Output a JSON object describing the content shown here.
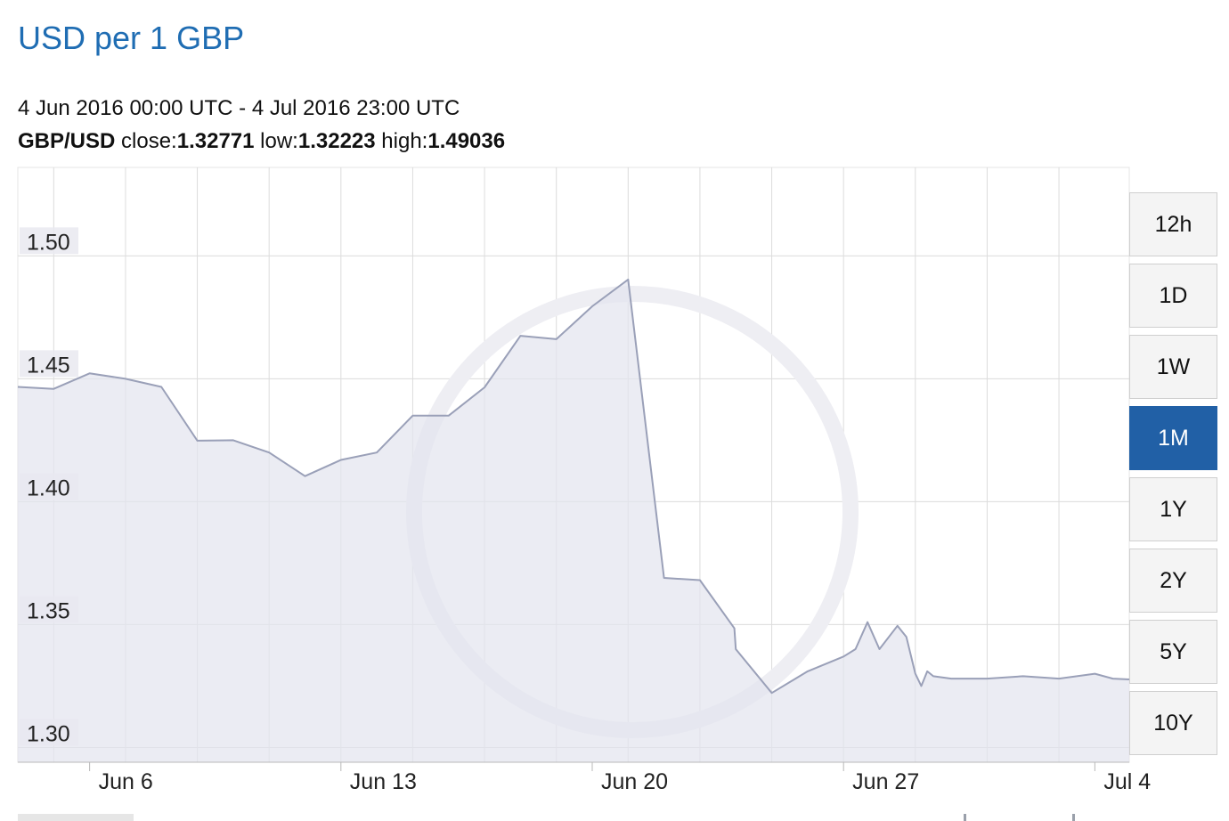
{
  "header": {
    "title": "USD per 1 GBP",
    "date_range": "4 Jun 2016 00:00 UTC - 4 Jul 2016 23:00 UTC",
    "pair_label": "GBP/USD",
    "close_label": "close:",
    "close_value": "1.32771",
    "low_label": "low:",
    "low_value": "1.32223",
    "high_label": "high:",
    "high_value": "1.49036"
  },
  "range_buttons": [
    {
      "label": "12h",
      "active": false
    },
    {
      "label": "1D",
      "active": false
    },
    {
      "label": "1W",
      "active": false
    },
    {
      "label": "1M",
      "active": true
    },
    {
      "label": "1Y",
      "active": false
    },
    {
      "label": "2Y",
      "active": false
    },
    {
      "label": "5Y",
      "active": false
    },
    {
      "label": "10Y",
      "active": false
    }
  ],
  "colors": {
    "title": "#1f6db3",
    "active_button": "#2160a6",
    "line": "#9aa0b8",
    "area": "#e3e4ee",
    "grid": "#dcdcdc"
  },
  "chart_data": {
    "type": "area",
    "series": [
      {
        "x": [
          "2016-06-04",
          "2016-06-05",
          "2016-06-06",
          "2016-06-07",
          "2016-06-08",
          "2016-06-09",
          "2016-06-10",
          "2016-06-11",
          "2016-06-12",
          "2016-06-13",
          "2016-06-14",
          "2016-06-15",
          "2016-06-16",
          "2016-06-17",
          "2016-06-18",
          "2016-06-19",
          "2016-06-20",
          "2016-06-21",
          "2016-06-22",
          "2016-06-23",
          "2016-06-23 23:00",
          "2016-06-24",
          "2016-06-25",
          "2016-06-26",
          "2016-06-27",
          "2016-06-27 08:00",
          "2016-06-27 16:00",
          "2016-06-28",
          "2016-06-28 12:00",
          "2016-06-28 18:00",
          "2016-06-29",
          "2016-06-29 04:00",
          "2016-06-29 08:00",
          "2016-06-29 12:00",
          "2016-06-29 18:00",
          "2016-06-30",
          "2016-06-30 04:00",
          "2016-06-30 08:00",
          "2016-06-30 12:00",
          "2016-06-30 18:00",
          "2016-07-01",
          "2016-07-02",
          "2016-07-03",
          "2016-07-04",
          "2016-07-04 12:00",
          "2016-07-04 23:00"
        ],
        "y": [
          1.4467,
          1.4459,
          1.4522,
          1.45,
          1.4467,
          1.4248,
          1.425,
          1.42,
          1.4104,
          1.417,
          1.42,
          1.435,
          1.435,
          1.4465,
          1.4675,
          1.4661,
          1.4795,
          1.4904,
          1.369,
          1.3681,
          1.3485,
          1.34,
          1.3222,
          1.331,
          1.337,
          1.34,
          1.351,
          1.34,
          1.3495,
          1.345,
          1.33,
          1.325,
          1.331,
          1.329,
          1.3285,
          1.328,
          1.328,
          1.328,
          1.328,
          1.328,
          1.328,
          1.329,
          1.328,
          1.33,
          1.328,
          1.3277
        ]
      }
    ],
    "x_ticks": [
      "Jun 6",
      "Jun 13",
      "Jun 20",
      "Jun 27",
      "Jul 4"
    ],
    "y_ticks": [
      "1.30",
      "1.35",
      "1.40",
      "1.45",
      "1.50"
    ],
    "ylim": [
      1.294,
      1.536
    ],
    "grid": true
  }
}
